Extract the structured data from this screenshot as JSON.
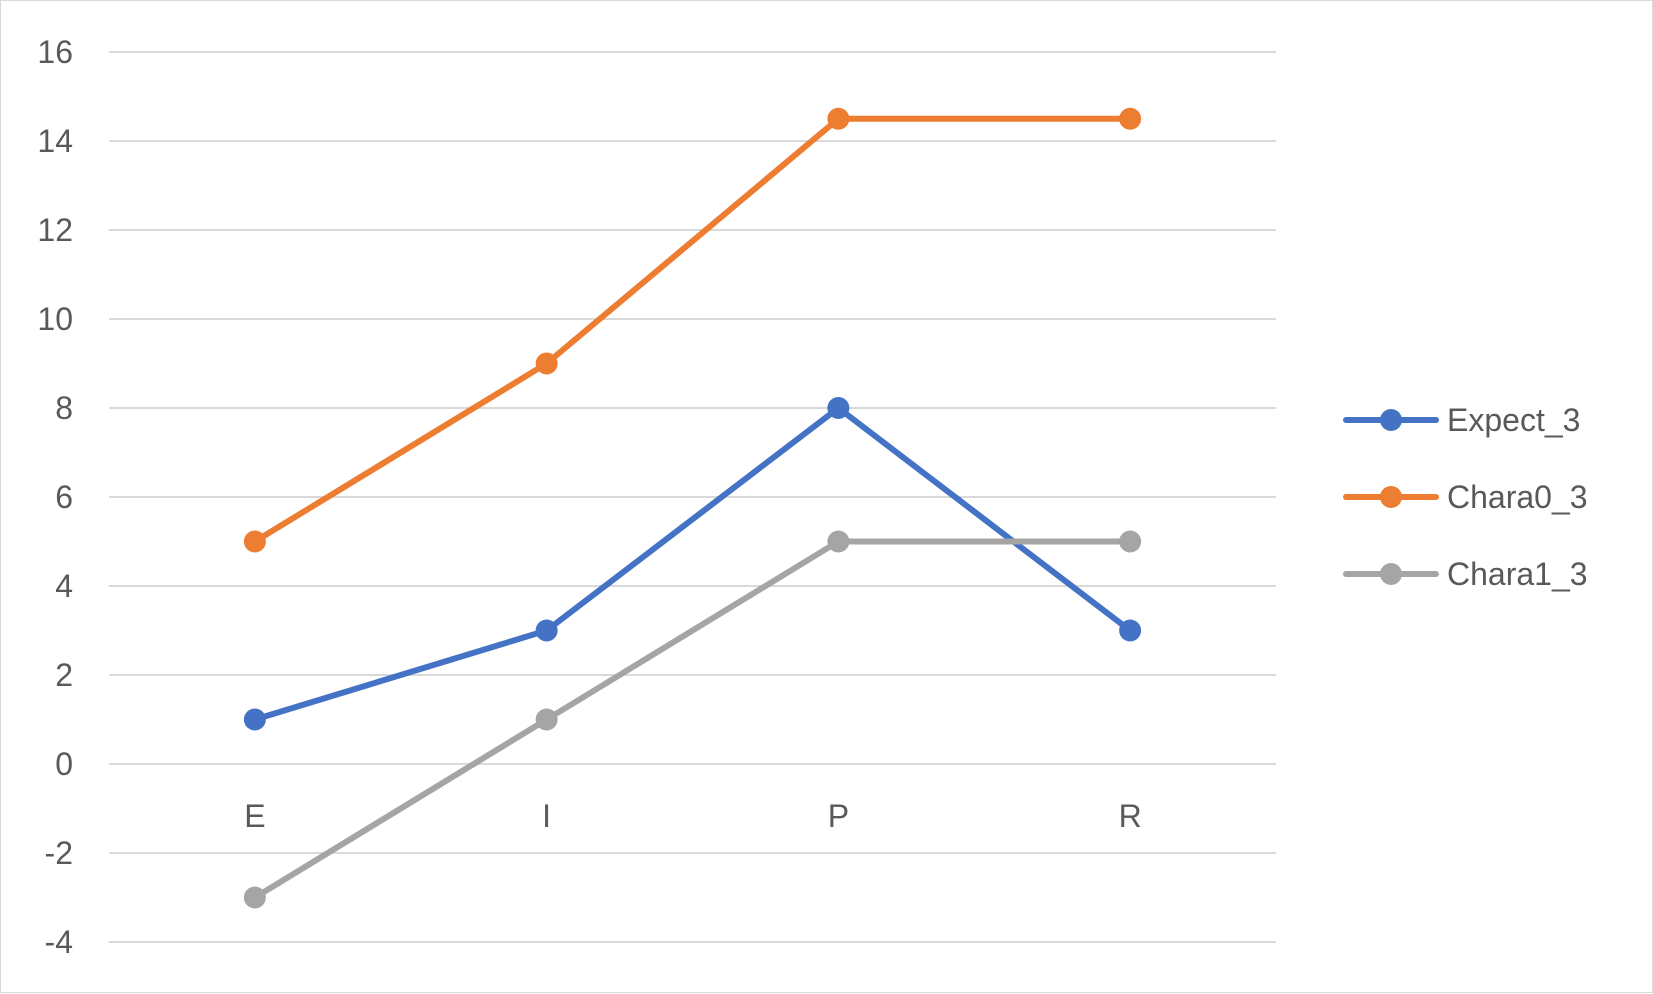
{
  "chart_data": {
    "type": "line",
    "title": "",
    "xlabel": "",
    "ylabel": "",
    "categories": [
      "E",
      "I",
      "P",
      "R"
    ],
    "ylim": [
      -4,
      16
    ],
    "yticks": [
      -4,
      -2,
      0,
      2,
      4,
      6,
      8,
      10,
      12,
      14,
      16
    ],
    "grid": true,
    "legend_position": "right",
    "series": [
      {
        "name": "Expect_3",
        "color": "#4472C4",
        "values": [
          1,
          3,
          8,
          3
        ]
      },
      {
        "name": "Chara0_3",
        "color": "#ED7D31",
        "values": [
          5,
          9,
          14.5,
          14.5
        ]
      },
      {
        "name": "Chara1_3",
        "color": "#A5A5A5",
        "values": [
          -3,
          1,
          5,
          5
        ]
      }
    ]
  }
}
